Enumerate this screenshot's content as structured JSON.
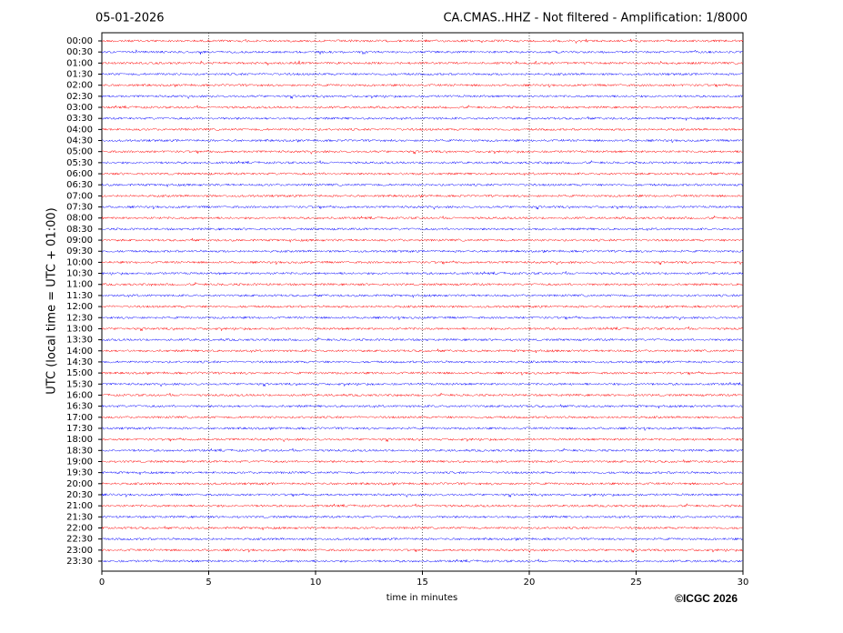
{
  "chart_data": {
    "type": "helicorder",
    "title_left": "05-01-2026",
    "title": "CA.CMAS..HHZ - Not filtered - Amplification: 1/8000",
    "x_label": "time in minutes",
    "y_label": "UTC (local time = UTC + 01:00)",
    "copyright": "©ICGC 2026",
    "categories": [
      "00:00",
      "00:30",
      "01:00",
      "01:30",
      "02:00",
      "02:30",
      "03:00",
      "03:30",
      "04:00",
      "04:30",
      "05:00",
      "05:30",
      "06:00",
      "06:30",
      "07:00",
      "07:30",
      "08:00",
      "08:30",
      "09:00",
      "09:30",
      "10:00",
      "10:30",
      "11:00",
      "11:30",
      "12:00",
      "12:30",
      "13:00",
      "13:30",
      "14:00",
      "14:30",
      "15:00",
      "15:30",
      "16:00",
      "16:30",
      "17:00",
      "17:30",
      "18:00",
      "18:30",
      "19:00",
      "19:30",
      "20:00",
      "20:30",
      "21:00",
      "21:30",
      "22:00",
      "22:30",
      "23:00",
      "23:30"
    ],
    "colors": [
      "#ff0000",
      "#0000ff"
    ],
    "xlim": [
      0,
      30
    ],
    "xticks": [
      0,
      5,
      10,
      15,
      20,
      25,
      30
    ],
    "grid": true
  }
}
